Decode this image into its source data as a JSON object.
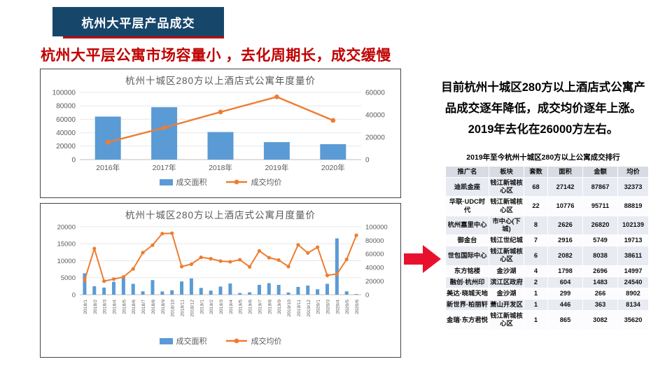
{
  "slide": {
    "badge": {
      "label": "杭州大平层产品成交",
      "bg": "#17466B",
      "accent": "#C00000"
    },
    "title": {
      "text": "杭州大平层公寓市场容量小 ，去化周期长，成交缓慢",
      "color": "#C00000"
    }
  },
  "colors": {
    "bar": "#5B9BD5",
    "line": "#ED7D31",
    "axis_text": "#595959",
    "grid": "#E7E7E7",
    "axis_line": "#BFBFBF",
    "panel_border": "#454545",
    "arrow": "#E8112D",
    "table_header_bg": "#D8DBE3",
    "table_band_bg": "#E9EBF3"
  },
  "chart_data": [
    {
      "type": "bar",
      "subtype": "combo-bar-line",
      "title": "杭州十城区280方以上酒店式公寓年度量价",
      "categories": [
        "2016年",
        "2017年",
        "2018年",
        "2019年",
        "2020年"
      ],
      "series": [
        {
          "name": "成交面积",
          "type": "bar",
          "axis": "left",
          "values": [
            64000,
            78000,
            41000,
            26000,
            23000
          ]
        },
        {
          "name": "成交均价",
          "type": "line",
          "axis": "right",
          "values": [
            15500,
            28500,
            42500,
            56000,
            35000
          ]
        }
      ],
      "left_axis": {
        "min": 0,
        "max": 100000,
        "ticks": [
          0,
          20000,
          40000,
          60000,
          80000,
          100000
        ]
      },
      "right_axis": {
        "min": 0,
        "max": 60000,
        "ticks": [
          0,
          20000,
          40000,
          60000
        ]
      },
      "grid": true,
      "legend_position": "bottom"
    },
    {
      "type": "bar",
      "subtype": "combo-bar-line",
      "title": "杭州十城区280方以上酒店式公寓月度量价",
      "categories": [
        "2018/1",
        "2018/2",
        "2018/3",
        "2018/4",
        "2018/5",
        "2018/6",
        "2018/7",
        "2018/8",
        "2018/9",
        "2018/10",
        "2018/11",
        "2018/12",
        "2019/1",
        "2019/2",
        "2019/3",
        "2019/4",
        "2019/5",
        "2019/6",
        "2019/7",
        "2019/8",
        "2019/9",
        "2019/10",
        "2019/11",
        "2019/12",
        "2020/1",
        "2020/3",
        "2020/4",
        "2020/5",
        "2020/6"
      ],
      "series": [
        {
          "name": "成交面积",
          "type": "bar",
          "axis": "left",
          "values": [
            6300,
            2500,
            2100,
            3800,
            5000,
            3200,
            1000,
            4300,
            950,
            1300,
            3900,
            4800,
            2000,
            1200,
            2400,
            3300,
            500,
            700,
            2900,
            3400,
            2900,
            650,
            2300,
            2700,
            1600,
            3200,
            16600,
            1000,
            200
          ]
        },
        {
          "name": "成交均价",
          "type": "line",
          "axis": "right",
          "values": [
            21500,
            68000,
            20000,
            23000,
            26000,
            38000,
            62000,
            73000,
            90000,
            90500,
            41500,
            45000,
            55000,
            53000,
            49500,
            48500,
            51500,
            41000,
            64500,
            54500,
            51000,
            41500,
            73500,
            61500,
            70000,
            28500,
            30500,
            52000,
            87500
          ]
        }
      ],
      "left_axis": {
        "min": 0,
        "max": 20000,
        "ticks": [
          0,
          5000,
          10000,
          15000,
          20000
        ]
      },
      "right_axis": {
        "min": 0,
        "max": 100000,
        "ticks": [
          0,
          20000,
          40000,
          60000,
          80000,
          100000
        ]
      },
      "grid": true,
      "legend_position": "bottom"
    }
  ],
  "insight": {
    "lines": [
      "目前杭州十城区280方以上酒店式公寓产",
      "品成交逐年降低，成交均价逐年上涨。",
      "2019年去化在26000方左右。"
    ]
  },
  "ranking_table": {
    "title": "2019年至今杭州十城区280方以上公寓成交排行",
    "headers": [
      "推广名",
      "板块",
      "套数",
      "面积",
      "金额",
      "均价"
    ],
    "rows": [
      [
        "迪凯金座",
        "钱江新城核心区",
        "68",
        "27142",
        "87867",
        "32373"
      ],
      [
        "华联·UDC时代",
        "钱江新城核心区",
        "22",
        "10776",
        "95711",
        "88819"
      ],
      [
        "杭州嘉里中心",
        "市中心(下城)",
        "8",
        "2626",
        "26820",
        "102139"
      ],
      [
        "御金台",
        "钱江世纪城",
        "7",
        "2916",
        "5749",
        "19713"
      ],
      [
        "世包国际中心",
        "钱江新城核心区",
        "6",
        "2082",
        "8038",
        "38611"
      ],
      [
        "东方铭楼",
        "金沙湖",
        "4",
        "1798",
        "2696",
        "14997"
      ],
      [
        "融创·杭州印",
        "滨江区政府",
        "2",
        "604",
        "1483",
        "24540"
      ],
      [
        "美达·晓城天地",
        "金沙湖",
        "1",
        "299",
        "266",
        "8902"
      ],
      [
        "新世界·柏丽轩",
        "萧山开发区",
        "1",
        "446",
        "363",
        "8134"
      ],
      [
        "金瑞·东方君悦",
        "钱江新城核心区",
        "1",
        "865",
        "3082",
        "35620"
      ]
    ]
  }
}
